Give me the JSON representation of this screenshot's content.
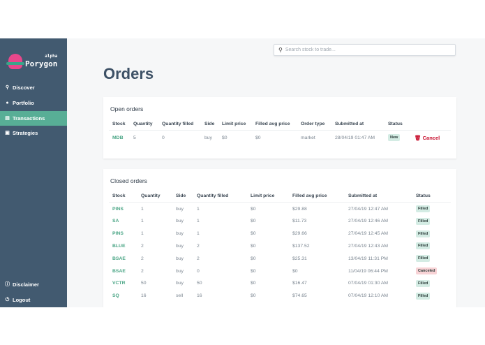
{
  "brand": {
    "name": "Porygon",
    "tag": "alpha"
  },
  "sidebar": {
    "items": [
      {
        "label": "Discover",
        "icon": "search-icon"
      },
      {
        "label": "Portfolio",
        "icon": "user-icon"
      },
      {
        "label": "Transactions",
        "icon": "receipt-icon"
      },
      {
        "label": "Strategies",
        "icon": "book-icon"
      }
    ],
    "bottom": [
      {
        "label": "Disclaimer",
        "icon": "info-icon"
      },
      {
        "label": "Logout",
        "icon": "power-icon"
      }
    ]
  },
  "search": {
    "placeholder": "Search stock to trade..."
  },
  "page_title": "Orders",
  "open_orders": {
    "title": "Open orders",
    "headers": [
      "Stock",
      "Quantity",
      "Quantity filled",
      "Side",
      "Limit price",
      "Filled avg price",
      "Order type",
      "Submitted at",
      "Status"
    ],
    "rows": [
      {
        "stock": "MDB",
        "quantity": "5",
        "filled": "0",
        "side": "buy",
        "limit": "$0",
        "avg": "$0",
        "type": "market",
        "submitted": "28/04/19 01:47 AM",
        "status": "New",
        "action": "Cancel"
      }
    ]
  },
  "closed_orders": {
    "title": "Closed orders",
    "headers": [
      "Stock",
      "Quantity",
      "Side",
      "Quantity filled",
      "Limit price",
      "Filled avg price",
      "Submitted at",
      "Status"
    ],
    "rows": [
      {
        "stock": "PINS",
        "quantity": "1",
        "side": "buy",
        "filled": "1",
        "limit": "$0",
        "avg": "$29.88",
        "submitted": "27/04/19 12:47 AM",
        "status": "Filled"
      },
      {
        "stock": "SA",
        "quantity": "1",
        "side": "buy",
        "filled": "1",
        "limit": "$0",
        "avg": "$11.73",
        "submitted": "27/04/19 12:46 AM",
        "status": "Filled"
      },
      {
        "stock": "PINS",
        "quantity": "1",
        "side": "buy",
        "filled": "1",
        "limit": "$0",
        "avg": "$29.66",
        "submitted": "27/04/19 12:45 AM",
        "status": "Filled"
      },
      {
        "stock": "BLUE",
        "quantity": "2",
        "side": "buy",
        "filled": "2",
        "limit": "$0",
        "avg": "$137.52",
        "submitted": "27/04/19 12:43 AM",
        "status": "Filled"
      },
      {
        "stock": "BSAE",
        "quantity": "2",
        "side": "buy",
        "filled": "2",
        "limit": "$0",
        "avg": "$25.31",
        "submitted": "13/04/19 11:31 PM",
        "status": "Filled"
      },
      {
        "stock": "BSAE",
        "quantity": "2",
        "side": "buy",
        "filled": "0",
        "limit": "$0",
        "avg": "$0",
        "submitted": "11/04/19 06:44 PM",
        "status": "Canceled"
      },
      {
        "stock": "VCTR",
        "quantity": "50",
        "side": "buy",
        "filled": "50",
        "limit": "$0",
        "avg": "$16.47",
        "submitted": "07/04/19 01:30 AM",
        "status": "Filled"
      },
      {
        "stock": "SQ",
        "quantity": "16",
        "side": "sell",
        "filled": "16",
        "limit": "$0",
        "avg": "$74.65",
        "submitted": "07/04/19 12:10 AM",
        "status": "Filled"
      }
    ]
  }
}
